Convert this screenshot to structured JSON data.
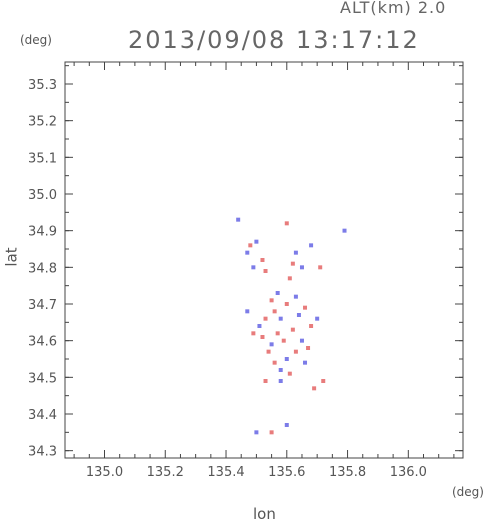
{
  "header": {
    "alt_label": "ALT(km) 2.0",
    "title": "2013/09/08 13:17:12"
  },
  "colors": {
    "frame": "#444444",
    "positive": "#e05050",
    "negative": "#5050e0",
    "weak": "#f0a0a0"
  },
  "chart_data": {
    "type": "scatter",
    "title": "2013/09/08 13:17:12",
    "xlabel": "lon",
    "ylabel": "lat",
    "x_unit": "(deg)",
    "y_unit": "(deg)",
    "xlim": [
      134.87,
      136.18
    ],
    "ylim": [
      34.28,
      35.36
    ],
    "x_ticks": [
      "135.0",
      "135.2",
      "135.4",
      "135.6",
      "135.8",
      "136.0"
    ],
    "y_ticks": [
      "34.3",
      "34.4",
      "34.5",
      "34.6",
      "34.7",
      "34.8",
      "34.9",
      "35.0",
      "35.1",
      "35.2",
      "35.3"
    ],
    "x_tick_values": [
      135.0,
      135.2,
      135.4,
      135.6,
      135.8,
      136.0
    ],
    "y_tick_values": [
      34.3,
      34.4,
      34.5,
      34.6,
      34.7,
      34.8,
      34.9,
      35.0,
      35.1,
      35.2,
      35.3
    ],
    "grid": false,
    "points": [
      {
        "lon": 135.47,
        "lat": 34.84,
        "sign": "neg"
      },
      {
        "lon": 135.48,
        "lat": 34.86,
        "sign": "pos"
      },
      {
        "lon": 135.5,
        "lat": 34.87,
        "sign": "neg"
      },
      {
        "lon": 135.52,
        "lat": 34.82,
        "sign": "pos"
      },
      {
        "lon": 135.53,
        "lat": 34.79,
        "sign": "pos"
      },
      {
        "lon": 135.49,
        "lat": 34.8,
        "sign": "neg"
      },
      {
        "lon": 135.44,
        "lat": 34.93,
        "sign": "neg"
      },
      {
        "lon": 135.6,
        "lat": 34.92,
        "sign": "pos"
      },
      {
        "lon": 135.79,
        "lat": 34.9,
        "sign": "neg"
      },
      {
        "lon": 135.63,
        "lat": 34.84,
        "sign": "neg"
      },
      {
        "lon": 135.65,
        "lat": 34.8,
        "sign": "neg"
      },
      {
        "lon": 135.62,
        "lat": 34.81,
        "sign": "pos"
      },
      {
        "lon": 135.68,
        "lat": 34.86,
        "sign": "neg"
      },
      {
        "lon": 135.71,
        "lat": 34.8,
        "sign": "pos"
      },
      {
        "lon": 135.61,
        "lat": 34.77,
        "sign": "pos"
      },
      {
        "lon": 135.55,
        "lat": 34.71,
        "sign": "pos"
      },
      {
        "lon": 135.56,
        "lat": 34.68,
        "sign": "pos"
      },
      {
        "lon": 135.58,
        "lat": 34.66,
        "sign": "neg"
      },
      {
        "lon": 135.53,
        "lat": 34.66,
        "sign": "pos"
      },
      {
        "lon": 135.51,
        "lat": 34.64,
        "sign": "neg"
      },
      {
        "lon": 135.57,
        "lat": 34.62,
        "sign": "pos"
      },
      {
        "lon": 135.59,
        "lat": 34.6,
        "sign": "pos"
      },
      {
        "lon": 135.55,
        "lat": 34.59,
        "sign": "neg"
      },
      {
        "lon": 135.62,
        "lat": 34.63,
        "sign": "pos"
      },
      {
        "lon": 135.64,
        "lat": 34.67,
        "sign": "neg"
      },
      {
        "lon": 135.66,
        "lat": 34.69,
        "sign": "pos"
      },
      {
        "lon": 135.68,
        "lat": 34.64,
        "sign": "pos"
      },
      {
        "lon": 135.7,
        "lat": 34.66,
        "sign": "neg"
      },
      {
        "lon": 135.63,
        "lat": 34.57,
        "sign": "pos"
      },
      {
        "lon": 135.6,
        "lat": 34.55,
        "sign": "neg"
      },
      {
        "lon": 135.56,
        "lat": 34.54,
        "sign": "pos"
      },
      {
        "lon": 135.58,
        "lat": 34.52,
        "sign": "neg"
      },
      {
        "lon": 135.61,
        "lat": 34.51,
        "sign": "pos"
      },
      {
        "lon": 135.54,
        "lat": 34.57,
        "sign": "pos"
      },
      {
        "lon": 135.65,
        "lat": 34.6,
        "sign": "neg"
      },
      {
        "lon": 135.67,
        "lat": 34.58,
        "sign": "pos"
      },
      {
        "lon": 135.53,
        "lat": 34.49,
        "sign": "pos"
      },
      {
        "lon": 135.58,
        "lat": 34.49,
        "sign": "neg"
      },
      {
        "lon": 135.69,
        "lat": 34.47,
        "sign": "pos"
      },
      {
        "lon": 135.72,
        "lat": 34.49,
        "sign": "pos"
      },
      {
        "lon": 135.5,
        "lat": 34.35,
        "sign": "neg"
      },
      {
        "lon": 135.55,
        "lat": 34.35,
        "sign": "pos"
      },
      {
        "lon": 135.6,
        "lat": 34.37,
        "sign": "neg"
      },
      {
        "lon": 135.47,
        "lat": 34.68,
        "sign": "neg"
      },
      {
        "lon": 135.49,
        "lat": 34.62,
        "sign": "pos"
      },
      {
        "lon": 135.57,
        "lat": 34.73,
        "sign": "neg"
      },
      {
        "lon": 135.6,
        "lat": 34.7,
        "sign": "pos"
      },
      {
        "lon": 135.63,
        "lat": 34.72,
        "sign": "neg"
      },
      {
        "lon": 135.52,
        "lat": 34.61,
        "sign": "pos"
      },
      {
        "lon": 135.66,
        "lat": 34.54,
        "sign": "neg"
      }
    ]
  }
}
